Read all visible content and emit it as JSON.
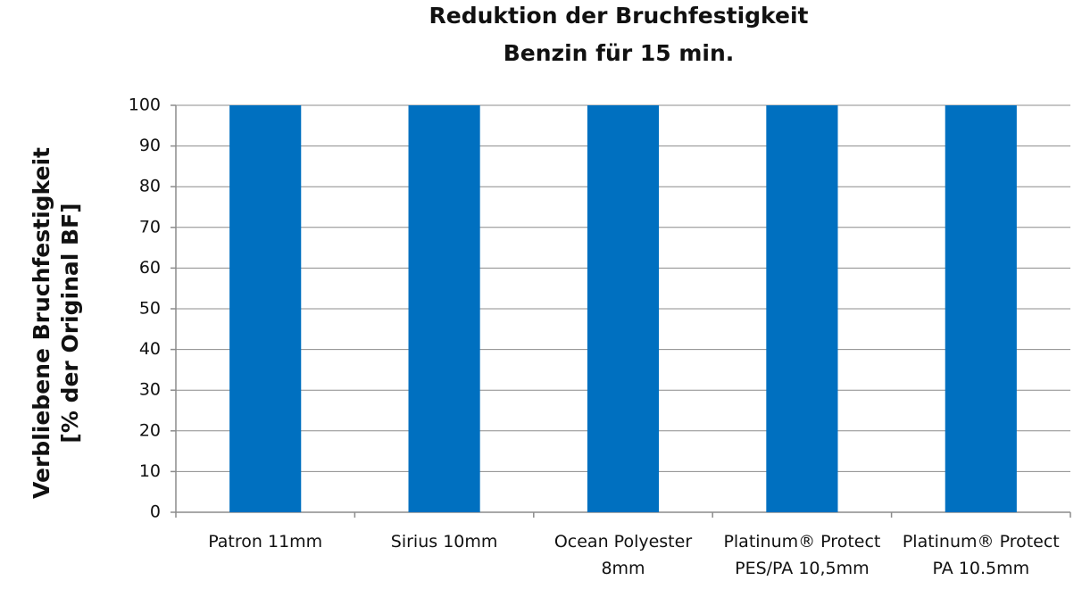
{
  "chart_data": {
    "type": "bar",
    "title": "Reduktion der Bruchfestigkeit",
    "subtitle": "Benzin für 15 min.",
    "ylabel": [
      "Verbliebene Bruchfestigkeit",
      "[% der Original BF]"
    ],
    "categories": [
      "Patron 11mm",
      "Sirius 10mm",
      "Ocean Polyester\n8mm",
      "Platinum® Protect\nPES/PA 10,5mm",
      "Platinum® Protect\nPA 10.5mm"
    ],
    "values": [
      100,
      100,
      100,
      100,
      100
    ],
    "color": "#0070c0",
    "ylim": [
      0,
      100
    ],
    "yticks": [
      0,
      10,
      20,
      30,
      40,
      50,
      60,
      70,
      80,
      90,
      100
    ],
    "grid": true
  }
}
